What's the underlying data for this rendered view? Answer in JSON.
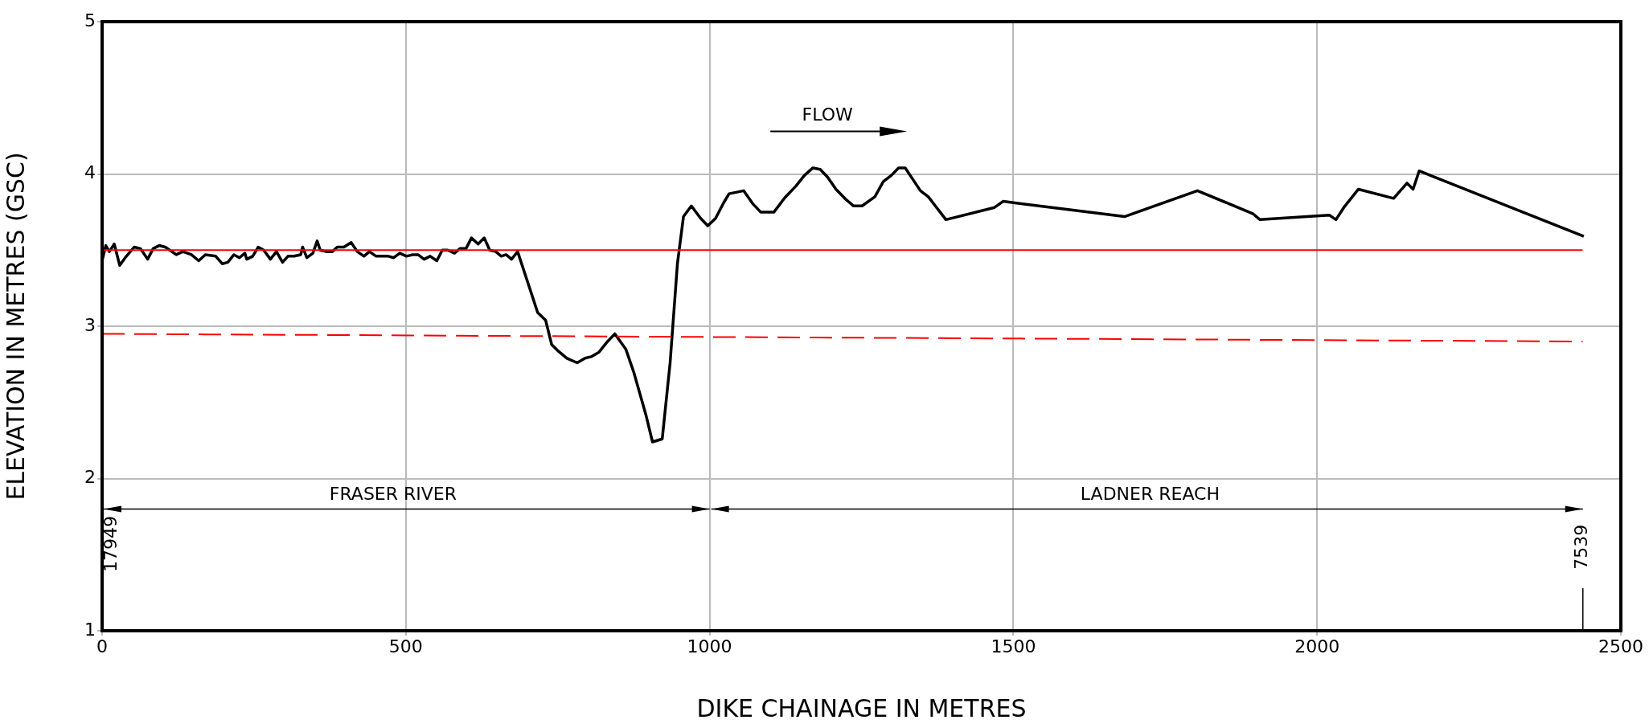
{
  "chart_data": {
    "type": "line",
    "xlabel": "DIKE CHAINAGE IN METRES",
    "ylabel": "ELEVATION IN METRES (GSC)",
    "xlim": [
      0,
      2500
    ],
    "xticks": [
      0,
      500,
      1000,
      1500,
      2000,
      2500
    ],
    "ylim": [
      1,
      5
    ],
    "yticks": [
      1,
      2,
      3,
      4,
      5
    ],
    "grid": true,
    "legend": false,
    "marker": "none",
    "line_style": "solid",
    "annotations": [
      "FLOW",
      "FRASER RIVER",
      "LADNER REACH",
      "17949",
      "7539"
    ],
    "series": [
      {
        "color": "#ff0000",
        "x": [
          0,
          2437
        ],
        "values": [
          3.5,
          3.5
        ]
      },
      {
        "color": "#ff0000",
        "line_style": "dashed",
        "x": [
          0,
          2437
        ],
        "values": [
          2.95,
          2.9
        ]
      },
      {
        "color": "#000000",
        "x": [
          0,
          6,
          12,
          20,
          29,
          38,
          53,
          63,
          75,
          84,
          94,
          104,
          122,
          133,
          147,
          159,
          170,
          187,
          198,
          207,
          217,
          226,
          235,
          238,
          248,
          257,
          266,
          277,
          287,
          297,
          306,
          316,
          327,
          330,
          337,
          347,
          354,
          359,
          369,
          379,
          387,
          398,
          410,
          420,
          431,
          440,
          451,
          461,
          471,
          480,
          490,
          501,
          511,
          520,
          530,
          540,
          551,
          560,
          569,
          580,
          589,
          599,
          608,
          619,
          629,
          638,
          648,
          657,
          665,
          674,
          684,
          717,
          730,
          740,
          750,
          765,
          782,
          795,
          805,
          818,
          832,
          844,
          862,
          875,
          895,
          906,
          922,
          935,
          947,
          957,
          970,
          985,
          997,
          1010,
          1023,
          1032,
          1056,
          1072,
          1084,
          1106,
          1123,
          1142,
          1156,
          1170,
          1182,
          1194,
          1208,
          1225,
          1237,
          1251,
          1272,
          1286,
          1299,
          1311,
          1322,
          1347,
          1360,
          1389,
          1469,
          1483,
          1683,
          1803,
          1894,
          1906,
          2020,
          2031,
          2044,
          2068,
          2126,
          2148,
          2158,
          2168,
          2439
        ],
        "values": [
          3.43,
          3.53,
          3.49,
          3.54,
          3.4,
          3.45,
          3.52,
          3.51,
          3.44,
          3.51,
          3.53,
          3.52,
          3.47,
          3.49,
          3.47,
          3.43,
          3.47,
          3.46,
          3.41,
          3.42,
          3.47,
          3.45,
          3.48,
          3.44,
          3.46,
          3.52,
          3.5,
          3.44,
          3.49,
          3.42,
          3.46,
          3.46,
          3.47,
          3.52,
          3.45,
          3.48,
          3.56,
          3.5,
          3.49,
          3.49,
          3.52,
          3.52,
          3.55,
          3.49,
          3.46,
          3.49,
          3.46,
          3.46,
          3.46,
          3.45,
          3.48,
          3.46,
          3.47,
          3.47,
          3.44,
          3.46,
          3.43,
          3.5,
          3.5,
          3.48,
          3.51,
          3.51,
          3.58,
          3.54,
          3.58,
          3.5,
          3.49,
          3.46,
          3.47,
          3.44,
          3.49,
          3.09,
          3.04,
          2.88,
          2.84,
          2.79,
          2.76,
          2.79,
          2.8,
          2.83,
          2.9,
          2.95,
          2.85,
          2.7,
          2.42,
          2.24,
          2.26,
          2.76,
          3.41,
          3.72,
          3.79,
          3.71,
          3.66,
          3.71,
          3.81,
          3.87,
          3.89,
          3.8,
          3.75,
          3.75,
          3.84,
          3.92,
          3.99,
          4.04,
          4.03,
          3.98,
          3.9,
          3.83,
          3.79,
          3.79,
          3.85,
          3.95,
          3.99,
          4.04,
          4.04,
          3.89,
          3.85,
          3.7,
          3.78,
          3.82,
          3.72,
          3.89,
          3.74,
          3.7,
          3.73,
          3.7,
          3.78,
          3.9,
          3.84,
          3.94,
          3.9,
          4.02,
          3.59
        ]
      }
    ]
  }
}
